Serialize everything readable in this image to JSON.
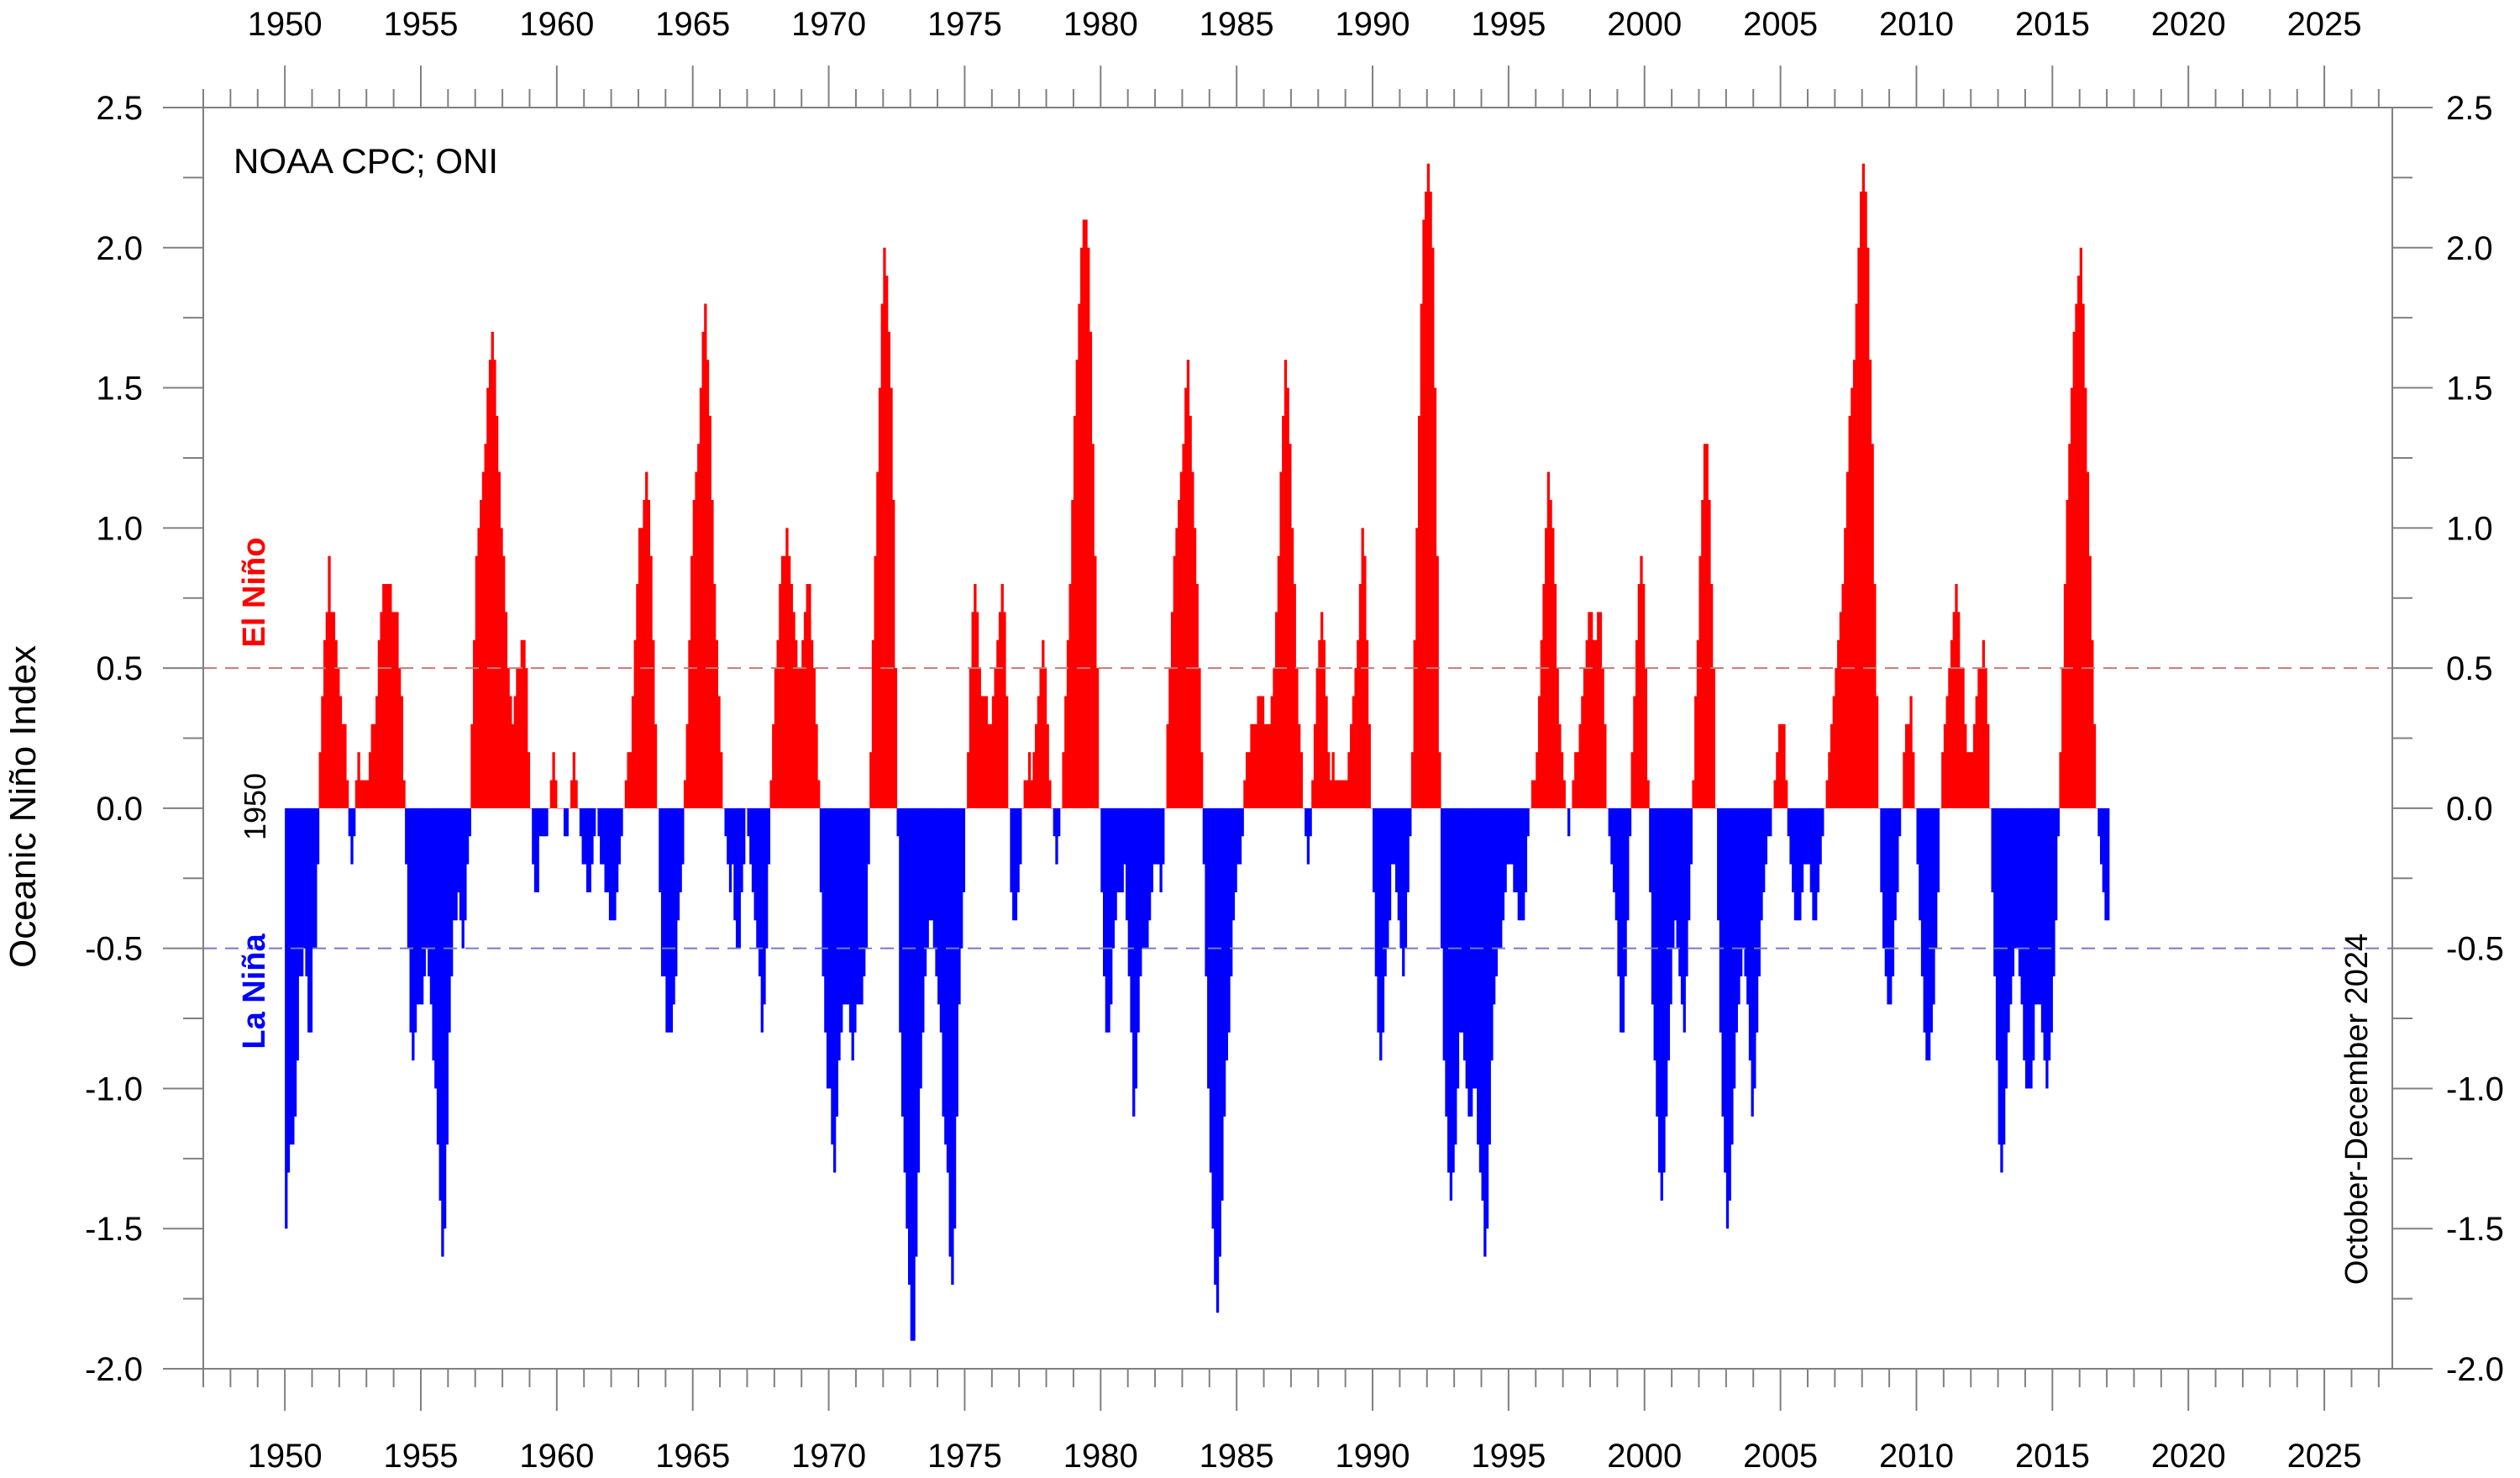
{
  "chart_data": {
    "type": "bar",
    "title": "",
    "source_label": "NOAA CPC; ONI",
    "ylabel": "Oceanic Niño Index",
    "xlabel": "",
    "start_year_label": "1950",
    "end_period_label": "October-December 2024",
    "el_nino_label": "El Niño",
    "la_nina_label": "La Niña",
    "x_range": [
      1947,
      2027.5
    ],
    "ylim": [
      -2.0,
      2.5
    ],
    "y_ticks": [
      "2.5",
      "2.0",
      "1.5",
      "1.0",
      "0.5",
      "0.0",
      "-0.5",
      "-1.0",
      "-1.5",
      "-2.0"
    ],
    "x_ticks": [
      "1950",
      "1955",
      "1960",
      "1965",
      "1970",
      "1975",
      "1980",
      "1985",
      "1990",
      "1995",
      "2000",
      "2005",
      "2010",
      "2015",
      "2020",
      "2025"
    ],
    "thresholds": {
      "el_nino": 0.5,
      "la_nina": -0.5
    },
    "colors": {
      "positive": "#ff0000",
      "negative": "#0000ff",
      "el_nino_line": "#c87878",
      "la_nina_line": "#7878c8",
      "axis": "#808080"
    },
    "grid": false,
    "monthly_from": "1950-01",
    "values": [
      -1.5,
      -1.3,
      -1.2,
      -1.2,
      -1.1,
      -0.9,
      -0.6,
      -0.6,
      -0.5,
      -0.6,
      -0.8,
      -0.8,
      -0.5,
      -0.5,
      -0.2,
      0.2,
      0.4,
      0.6,
      0.7,
      0.9,
      0.7,
      0.7,
      0.6,
      0.5,
      0.4,
      0.3,
      0.3,
      0.1,
      -0.1,
      -0.2,
      -0.1,
      0.1,
      0.2,
      0.1,
      0.1,
      0.1,
      0.1,
      0.2,
      0.3,
      0.3,
      0.4,
      0.6,
      0.7,
      0.8,
      0.8,
      0.8,
      0.8,
      0.7,
      0.7,
      0.7,
      0.5,
      0.4,
      0.1,
      -0.2,
      -0.5,
      -0.8,
      -0.9,
      -0.8,
      -0.7,
      -0.7,
      -0.7,
      -0.6,
      -0.5,
      -0.6,
      -0.7,
      -0.9,
      -1.0,
      -1.2,
      -1.4,
      -1.6,
      -1.5,
      -1.2,
      -0.8,
      -0.6,
      -0.4,
      -0.4,
      -0.3,
      -0.4,
      -0.5,
      -0.4,
      -0.2,
      -0.1,
      0.3,
      0.6,
      0.9,
      1.0,
      1.1,
      1.2,
      1.3,
      1.5,
      1.6,
      1.7,
      1.6,
      1.4,
      1.2,
      1.0,
      0.9,
      0.7,
      0.5,
      0.4,
      0.3,
      0.4,
      0.5,
      0.5,
      0.6,
      0.6,
      0.5,
      0.2,
      0.0,
      -0.2,
      -0.3,
      -0.3,
      -0.1,
      -0.1,
      -0.1,
      -0.1,
      0.0,
      0.1,
      0.2,
      0.1,
      0.0,
      0.0,
      0.0,
      -0.1,
      -0.1,
      0.0,
      0.1,
      0.2,
      0.1,
      0.0,
      -0.1,
      -0.2,
      -0.2,
      -0.3,
      -0.3,
      -0.2,
      -0.1,
      0.0,
      -0.1,
      -0.2,
      -0.2,
      -0.3,
      -0.3,
      -0.4,
      -0.4,
      -0.4,
      -0.3,
      -0.2,
      -0.1,
      0.0,
      0.1,
      0.2,
      0.2,
      0.4,
      0.6,
      0.8,
      1.0,
      1.0,
      1.1,
      1.2,
      1.1,
      0.9,
      0.6,
      0.3,
      0.0,
      -0.3,
      -0.6,
      -0.6,
      -0.8,
      -0.8,
      -0.8,
      -0.7,
      -0.6,
      -0.4,
      -0.3,
      -0.2,
      0.1,
      0.3,
      0.6,
      0.9,
      1.1,
      1.2,
      1.3,
      1.5,
      1.7,
      1.8,
      1.6,
      1.4,
      1.1,
      0.8,
      0.6,
      0.4,
      0.2,
      0.0,
      -0.1,
      -0.2,
      -0.3,
      -0.2,
      -0.4,
      -0.5,
      -0.5,
      -0.3,
      -0.2,
      0.0,
      -0.1,
      -0.2,
      -0.3,
      -0.4,
      -0.5,
      -0.6,
      -0.8,
      -0.7,
      -0.5,
      -0.2,
      0.1,
      0.3,
      0.5,
      0.6,
      0.8,
      0.9,
      0.9,
      1.0,
      0.9,
      0.8,
      0.7,
      0.6,
      0.5,
      0.5,
      0.6,
      0.7,
      0.8,
      0.8,
      0.6,
      0.5,
      0.3,
      0.1,
      -0.3,
      -0.6,
      -0.8,
      -1.0,
      -1.0,
      -1.2,
      -1.3,
      -1.1,
      -0.9,
      -0.8,
      -0.7,
      -0.7,
      -0.7,
      -0.8,
      -0.9,
      -0.8,
      -0.7,
      -0.7,
      -0.7,
      -0.6,
      -0.5,
      -0.2,
      0.2,
      0.6,
      0.9,
      1.2,
      1.5,
      1.8,
      2.0,
      1.9,
      1.7,
      1.5,
      1.1,
      0.5,
      -0.1,
      -0.8,
      -1.1,
      -1.3,
      -1.5,
      -1.7,
      -1.9,
      -1.9,
      -1.6,
      -1.3,
      -1.0,
      -0.8,
      -0.6,
      -0.5,
      -0.4,
      -0.4,
      -0.5,
      -0.6,
      -0.7,
      -0.8,
      -1.1,
      -1.2,
      -1.3,
      -1.6,
      -1.7,
      -1.5,
      -1.1,
      -0.7,
      -0.5,
      -0.3,
      0.0,
      0.2,
      0.5,
      0.7,
      0.8,
      0.7,
      0.5,
      0.4,
      0.4,
      0.4,
      0.3,
      0.3,
      0.4,
      0.5,
      0.6,
      0.7,
      0.8,
      0.7,
      0.4,
      0.0,
      -0.3,
      -0.4,
      -0.4,
      -0.3,
      -0.2,
      0.0,
      0.1,
      0.1,
      0.2,
      0.1,
      0.2,
      0.3,
      0.4,
      0.5,
      0.6,
      0.5,
      0.3,
      0.1,
      0.0,
      -0.1,
      -0.2,
      -0.1,
      0.0,
      0.2,
      0.4,
      0.6,
      0.8,
      1.1,
      1.4,
      1.6,
      1.8,
      2.0,
      2.1,
      2.1,
      2.0,
      1.7,
      1.3,
      0.9,
      0.5,
      0.0,
      -0.3,
      -0.6,
      -0.8,
      -0.8,
      -0.7,
      -0.5,
      -0.4,
      -0.3,
      -0.3,
      -0.3,
      -0.2,
      -0.4,
      -0.6,
      -0.8,
      -1.1,
      -1.0,
      -0.8,
      -0.6,
      -0.5,
      -0.5,
      -0.5,
      -0.4,
      -0.3,
      -0.2,
      -0.2,
      -0.2,
      -0.3,
      -0.2,
      0.0,
      0.3,
      0.5,
      0.7,
      0.9,
      1.0,
      1.1,
      1.2,
      1.3,
      1.5,
      1.6,
      1.4,
      1.2,
      1.0,
      0.8,
      0.5,
      0.2,
      -0.2,
      -0.6,
      -1.0,
      -1.3,
      -1.5,
      -1.7,
      -1.8,
      -1.6,
      -1.4,
      -1.1,
      -0.9,
      -0.8,
      -0.6,
      -0.4,
      -0.3,
      -0.2,
      -0.2,
      -0.1,
      0.1,
      0.2,
      0.2,
      0.3,
      0.3,
      0.3,
      0.4,
      0.4,
      0.4,
      0.3,
      0.3,
      0.3,
      0.4,
      0.5,
      0.7,
      0.9,
      1.2,
      1.4,
      1.6,
      1.5,
      1.3,
      1.0,
      0.8,
      0.5,
      0.3,
      0.2,
      0.0,
      -0.1,
      -0.2,
      -0.1,
      0.1,
      0.3,
      0.5,
      0.6,
      0.7,
      0.6,
      0.4,
      0.2,
      0.1,
      0.2,
      0.1,
      0.1,
      0.1,
      0.1,
      0.1,
      0.1,
      0.2,
      0.3,
      0.4,
      0.5,
      0.6,
      0.8,
      1.0,
      0.9,
      0.6,
      0.3,
      0.0,
      -0.3,
      -0.6,
      -0.8,
      -0.9,
      -0.8,
      -0.6,
      -0.5,
      -0.4,
      -0.2,
      -0.2,
      -0.3,
      -0.4,
      -0.5,
      -0.6,
      -0.5,
      -0.3,
      -0.1,
      0.2,
      0.6,
      1.0,
      1.4,
      1.8,
      2.1,
      2.2,
      2.3,
      2.2,
      2.0,
      1.5,
      0.9,
      0.2,
      -0.5,
      -0.9,
      -1.1,
      -1.3,
      -1.4,
      -1.3,
      -1.2,
      -1.0,
      -0.8,
      -0.8,
      -0.9,
      -1.0,
      -1.1,
      -1.1,
      -1.0,
      -1.0,
      -1.2,
      -1.3,
      -1.4,
      -1.6,
      -1.5,
      -1.2,
      -0.9,
      -0.7,
      -0.6,
      -0.5,
      -0.5,
      -0.4,
      -0.3,
      -0.2,
      -0.2,
      -0.2,
      -0.3,
      -0.3,
      -0.4,
      -0.4,
      -0.4,
      -0.3,
      -0.1,
      0.0,
      0.1,
      0.1,
      0.2,
      0.4,
      0.6,
      0.8,
      1.0,
      1.2,
      1.1,
      1.0,
      0.8,
      0.5,
      0.3,
      0.2,
      0.1,
      0.0,
      -0.1,
      0.0,
      0.1,
      0.2,
      0.2,
      0.3,
      0.4,
      0.5,
      0.6,
      0.7,
      0.7,
      0.6,
      0.6,
      0.7,
      0.7,
      0.5,
      0.3,
      0.0,
      -0.1,
      -0.2,
      -0.3,
      -0.4,
      -0.6,
      -0.8,
      -0.8,
      -0.6,
      -0.4,
      -0.1,
      0.2,
      0.4,
      0.6,
      0.8,
      0.9,
      0.8,
      0.5,
      0.1,
      -0.3,
      -0.7,
      -0.9,
      -1.1,
      -1.3,
      -1.4,
      -1.3,
      -1.1,
      -0.9,
      -0.7,
      -0.5,
      -0.4,
      -0.5,
      -0.6,
      -0.7,
      -0.8,
      -0.6,
      -0.4,
      -0.2,
      0.1,
      0.4,
      0.6,
      0.9,
      1.1,
      1.3,
      1.3,
      1.1,
      0.8,
      0.5,
      0.0,
      -0.4,
      -0.8,
      -1.1,
      -1.3,
      -1.5,
      -1.4,
      -1.2,
      -1.0,
      -0.8,
      -0.7,
      -0.6,
      -0.5,
      -0.6,
      -0.7,
      -0.9,
      -1.1,
      -1.0,
      -0.8,
      -0.6,
      -0.4,
      -0.3,
      -0.2,
      -0.1,
      -0.1,
      0.0,
      0.1,
      0.2,
      0.3,
      0.3,
      0.3,
      0.1,
      -0.1,
      -0.2,
      -0.3,
      -0.4,
      -0.4,
      -0.4,
      -0.3,
      -0.2,
      -0.2,
      -0.2,
      -0.3,
      -0.4,
      -0.4,
      -0.3,
      -0.2,
      -0.1,
      0.0,
      0.1,
      0.2,
      0.3,
      0.4,
      0.5,
      0.6,
      0.7,
      0.8,
      1.0,
      1.2,
      1.4,
      1.5,
      1.6,
      1.8,
      2.0,
      2.2,
      2.3,
      2.2,
      2.0,
      1.6,
      1.3,
      0.8,
      0.4,
      0.0,
      -0.3,
      -0.5,
      -0.6,
      -0.7,
      -0.7,
      -0.6,
      -0.4,
      -0.3,
      -0.1,
      0.0,
      0.2,
      0.3,
      0.3,
      0.4,
      0.2,
      0.0,
      -0.2,
      -0.4,
      -0.6,
      -0.8,
      -0.9,
      -0.9,
      -0.8,
      -0.7,
      -0.5,
      -0.3,
      0.0,
      0.2,
      0.3,
      0.4,
      0.5,
      0.6,
      0.7,
      0.8,
      0.7,
      0.5,
      0.5,
      0.3,
      0.2,
      0.2,
      0.2,
      0.3,
      0.4,
      0.5,
      0.5,
      0.6,
      0.5,
      0.3,
      0.0,
      -0.3,
      -0.6,
      -0.9,
      -1.2,
      -1.3,
      -1.2,
      -1.0,
      -0.8,
      -0.7,
      -0.6,
      -0.5,
      -0.5,
      -0.6,
      -0.7,
      -0.9,
      -1.0,
      -1.0,
      -1.0,
      -0.9,
      -0.7,
      -0.7,
      -0.7,
      -0.8,
      -0.9,
      -1.0,
      -0.9,
      -0.8,
      -0.6,
      -0.4,
      -0.1,
      0.2,
      0.5,
      0.8,
      1.1,
      1.3,
      1.5,
      1.7,
      1.8,
      1.9,
      2.0,
      1.8,
      1.5,
      1.2,
      0.9,
      0.6,
      0.3,
      0.0,
      -0.1,
      -0.2,
      -0.3,
      -0.4,
      -0.4
    ],
    "series": [
      {
        "name": "El Niño",
        "color": "#ff0000"
      },
      {
        "name": "La Niña",
        "color": "#0000ff"
      }
    ]
  }
}
